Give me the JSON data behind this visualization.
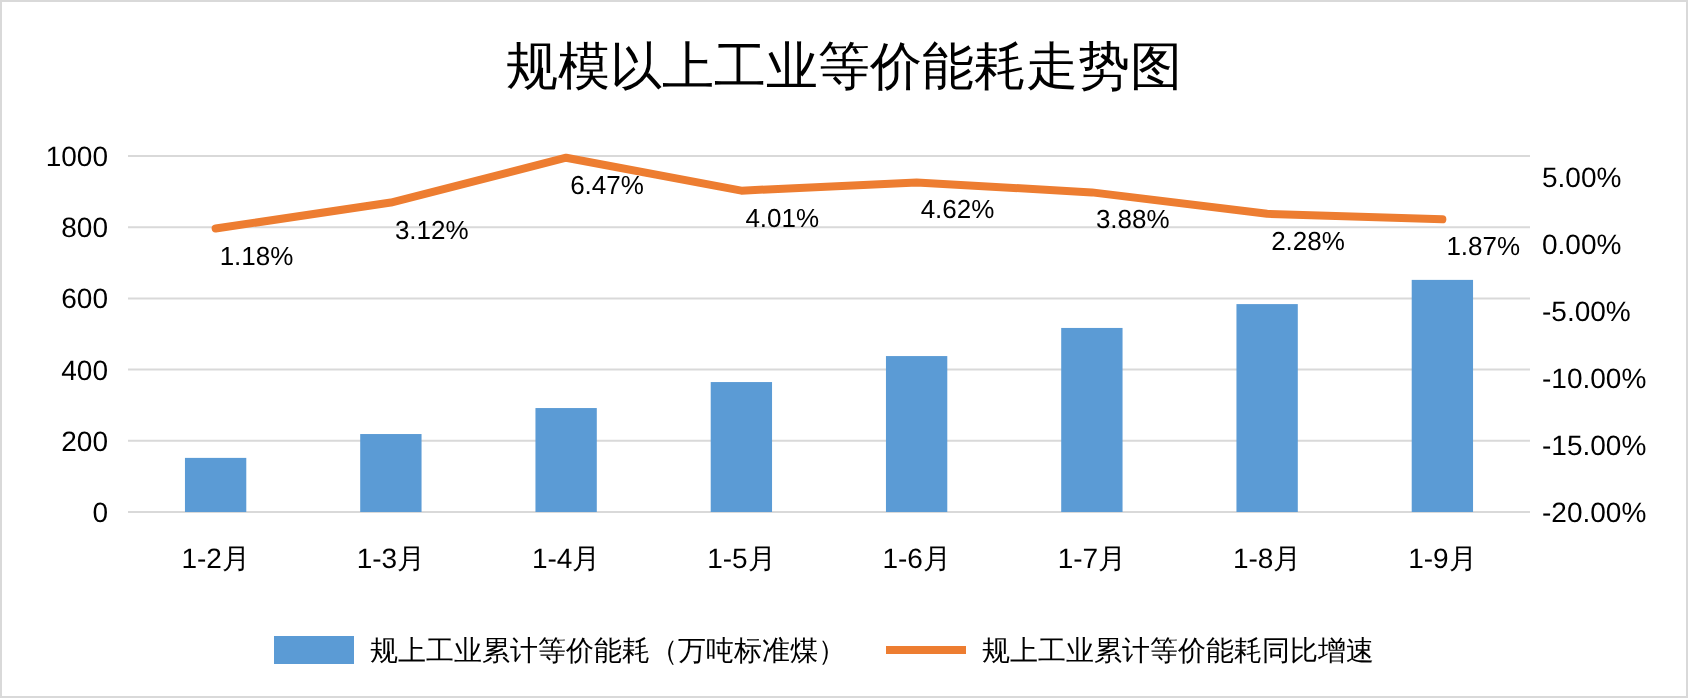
{
  "chart_data": {
    "type": "bar",
    "title": "规模以上工业等价能耗走势图",
    "categories": [
      "1-2月",
      "1-3月",
      "1-4月",
      "1-5月",
      "1-6月",
      "1-7月",
      "1-8月",
      "1-9月"
    ],
    "series": [
      {
        "name": "规上工业累计等价能耗（万吨标准煤）",
        "color": "#5b9bd5",
        "values": [
          152,
          219,
          292,
          365,
          438,
          517,
          584,
          652
        ]
      },
      {
        "name": "规上工业累计等价能耗同比增速",
        "type": "line",
        "axis": "y2",
        "color": "#ed7d31",
        "values": [
          1.18,
          3.12,
          6.47,
          4.01,
          4.62,
          3.88,
          2.28,
          1.87
        ],
        "value_labels": [
          "1.18%",
          "3.12%",
          "6.47%",
          "4.01%",
          "4.62%",
          "3.88%",
          "2.28%",
          "1.87%"
        ]
      }
    ],
    "ylim": [
      0,
      1000
    ],
    "yticks": [
      0,
      200,
      400,
      600,
      800,
      1000
    ],
    "y2lim": [
      -20,
      6.6
    ],
    "y2ticks": [
      {
        "value": -20,
        "label": "-20.00%"
      },
      {
        "value": -15,
        "label": "-15.00%"
      },
      {
        "value": -10,
        "label": "-10.00%"
      },
      {
        "value": -5,
        "label": "-5.00%"
      },
      {
        "value": 0,
        "label": "0.00%"
      },
      {
        "value": 5,
        "label": "5.00%"
      }
    ],
    "grid": "y",
    "legend": "bottom",
    "marker": "none"
  }
}
